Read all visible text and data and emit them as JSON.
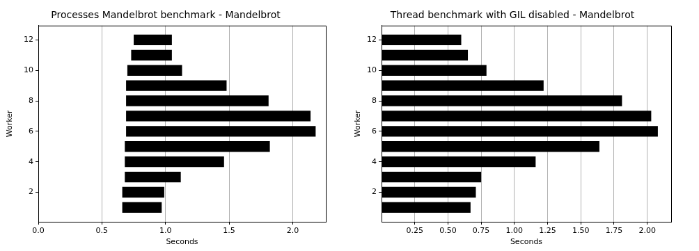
{
  "chart_data": [
    {
      "type": "bar",
      "orientation": "horizontal",
      "title": "Processes Mandelbrot benchmark - Mandelbrot",
      "xlabel": "Seconds",
      "ylabel": "Worker",
      "color": "#000000",
      "grid": "x",
      "x": [
        1,
        2,
        3,
        4,
        5,
        6,
        7,
        8,
        9,
        10,
        11,
        12
      ],
      "base": [
        0.66,
        0.66,
        0.68,
        0.68,
        0.68,
        0.69,
        0.69,
        0.69,
        0.69,
        0.7,
        0.73,
        0.75
      ],
      "values": [
        0.31,
        0.33,
        0.44,
        0.78,
        1.14,
        1.49,
        1.45,
        1.12,
        0.79,
        0.43,
        0.32,
        0.3
      ],
      "xlim": [
        0,
        2.26
      ],
      "xticks": [
        {
          "value": 0,
          "label": "0.0"
        },
        0.5,
        {
          "value": 1,
          "label": "1.0"
        },
        1.5,
        {
          "value": 2,
          "label": "2.0"
        }
      ],
      "ylim": [
        0.06,
        12.94
      ],
      "yticks": [
        2,
        4,
        6,
        8,
        10,
        12
      ]
    },
    {
      "type": "bar",
      "orientation": "horizontal",
      "title": "Thread benchmark with GIL disabled - Mandelbrot",
      "xlabel": "Seconds",
      "ylabel": "Worker",
      "color": "#000000",
      "grid": "x",
      "x": [
        1,
        2,
        3,
        4,
        5,
        6,
        7,
        8,
        9,
        10,
        11,
        12
      ],
      "values": [
        0.67,
        0.71,
        0.75,
        1.16,
        1.64,
        2.08,
        2.03,
        1.81,
        1.22,
        0.79,
        0.65,
        0.6
      ],
      "xlim": [
        0,
        2.18
      ],
      "xticks": [
        0.25,
        {
          "value": 0.5,
          "label": "0.50"
        },
        0.75,
        {
          "value": 1,
          "label": "1.00"
        },
        1.25,
        {
          "value": 1.5,
          "label": "1.50"
        },
        1.75,
        {
          "value": 2,
          "label": "2.00"
        }
      ],
      "ylim": [
        0.06,
        12.94
      ],
      "yticks": [
        2,
        4,
        6,
        8,
        10,
        12
      ]
    }
  ]
}
